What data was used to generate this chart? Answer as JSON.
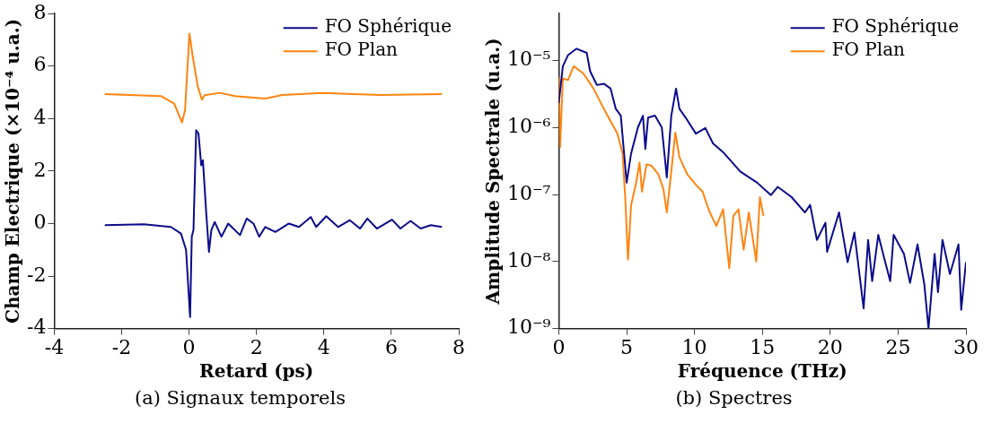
{
  "chart_data": [
    {
      "type": "line",
      "xlabel": "Retard (ps)",
      "ylabel": "Champ Electrique (×10⁻⁴ u.a.)",
      "annotations": [
        "(a) Signaux temporels"
      ],
      "xlim": [
        -4,
        8
      ],
      "xticks": [
        -4,
        -2,
        0,
        2,
        4,
        6,
        8
      ],
      "ylim": [
        -4,
        8
      ],
      "yticks": [
        -4,
        -2,
        0,
        2,
        4,
        6,
        8
      ],
      "grid": false,
      "legend": "top right",
      "marker": "none",
      "series": [
        {
          "name": "FO Sphérique",
          "color": "#0b0b8a",
          "x": [
            -2.5,
            -1.34,
            -0.54,
            -0.24,
            -0.09,
            0.03,
            0.08,
            0.13,
            0.21,
            0.28,
            0.36,
            0.41,
            0.51,
            0.59,
            0.66,
            0.76,
            0.96,
            1.16,
            1.51,
            1.71,
            1.91,
            2.08,
            2.26,
            2.56,
            2.96,
            3.26,
            3.61,
            3.77,
            4.07,
            4.42,
            4.77,
            5.07,
            5.29,
            5.57,
            6.02,
            6.27,
            6.57,
            6.87,
            7.17,
            7.5
          ],
          "values": [
            -0.06,
            -0.03,
            -0.13,
            -0.38,
            -1.0,
            -3.56,
            -0.5,
            -0.25,
            3.56,
            3.43,
            2.22,
            2.41,
            0.38,
            -1.08,
            -0.25,
            0.06,
            -0.5,
            0,
            -0.44,
            0.19,
            0,
            -0.5,
            -0.13,
            -0.32,
            0,
            -0.13,
            0.25,
            -0.13,
            0.28,
            -0.13,
            0.13,
            -0.19,
            0.19,
            -0.19,
            0.15,
            -0.19,
            0.1,
            -0.19,
            -0.06,
            -0.13
          ]
        },
        {
          "name": "FO Plan",
          "color": "#ff8410",
          "x": [
            -2.5,
            -0.84,
            -0.44,
            -0.21,
            -0.12,
            0.01,
            0.11,
            0.26,
            0.38,
            0.46,
            0.91,
            1.36,
            2.26,
            2.76,
            3.97,
            5.67,
            7.5
          ],
          "values": [
            4.93,
            4.86,
            4.57,
            3.85,
            4.32,
            7.24,
            6.35,
            5.21,
            4.72,
            4.89,
            4.98,
            4.86,
            4.76,
            4.9,
            4.98,
            4.9,
            4.93
          ]
        }
      ]
    },
    {
      "type": "line",
      "xlabel": "Fréquence (THz)",
      "ylabel": "Amplitude Spectrale (u.a.)",
      "annotations": [
        "(b) Spectres"
      ],
      "log": "y",
      "xlim": [
        0,
        30
      ],
      "xticks": [
        0,
        5,
        10,
        15,
        20,
        25,
        30
      ],
      "ylim": [
        1e-09,
        5e-05
      ],
      "yticks": [
        {
          "value": 1e-09,
          "label": "10⁻⁹"
        },
        {
          "value": 1e-08,
          "label": "10⁻⁸"
        },
        {
          "value": 1e-07,
          "label": "10⁻⁷"
        },
        {
          "value": 1e-06,
          "label": "10⁻⁶"
        },
        {
          "value": 1e-05,
          "label": "10⁻⁵"
        }
      ],
      "grid": false,
      "legend": "top right",
      "marker": "none",
      "series": [
        {
          "name": "FO Sphérique",
          "color": "#0b0b8a",
          "x": [
            0,
            0.3,
            0.68,
            1.31,
            2.06,
            2.31,
            2.81,
            3.32,
            3.82,
            4.2,
            4.57,
            5.0,
            5.33,
            5.83,
            6.2,
            6.38,
            6.58,
            7.09,
            7.59,
            7.96,
            8.29,
            8.64,
            8.89,
            9.35,
            10.1,
            10.8,
            11.36,
            12.1,
            13.37,
            14.62,
            15.63,
            16.13,
            17.14,
            18.14,
            18.52,
            19.02,
            19.65,
            19.77,
            20.65,
            21.28,
            21.78,
            22.46,
            22.79,
            23.09,
            23.54,
            24.04,
            24.42,
            24.67,
            25.43,
            25.88,
            26.43,
            26.93,
            27.24,
            27.69,
            27.94,
            28.27,
            28.82,
            29.45,
            29.65,
            30
          ],
          "values": [
            2.3e-06,
            8.2e-06,
            1.2e-05,
            1.5e-05,
            1.3e-05,
            6.9e-06,
            4.3e-06,
            4.5e-06,
            3.8e-06,
            1.9e-06,
            1.5e-06,
            1.5e-07,
            4.1e-07,
            1e-06,
            1.5e-06,
            4.8e-07,
            1.4e-06,
            1.5e-06,
            1e-06,
            1.8e-07,
            1.5e-06,
            3.8e-06,
            1.9e-06,
            1.4e-06,
            8.1e-07,
            9.8e-07,
            5.8e-07,
            4.3e-07,
            2.2e-07,
            1.5e-07,
            9.8e-08,
            1.3e-07,
            9.2e-08,
            5.4e-08,
            7e-08,
            2.1e-08,
            3.8e-08,
            1.4e-08,
            5.4e-08,
            9.8e-09,
            2.7e-08,
            2e-09,
            2.1e-08,
            5.1e-09,
            2.5e-08,
            1e-08,
            5.1e-09,
            2.5e-08,
            1.3e-08,
            4.8e-09,
            1.8e-08,
            4.6e-09,
            1e-09,
            1.3e-08,
            3.5e-09,
            2.1e-08,
            6.5e-09,
            1.8e-08,
            1.9e-09,
            9.8e-09
          ]
        },
        {
          "name": "FO Plan",
          "color": "#ff8410",
          "x": [
            0,
            0.1,
            0.3,
            0.68,
            1.1,
            1.81,
            2.56,
            3.32,
            4.32,
            4.7,
            4.9,
            5.1,
            5.33,
            5.7,
            5.95,
            6.13,
            6.46,
            6.83,
            7.34,
            7.71,
            7.96,
            8.29,
            8.59,
            8.89,
            9.47,
            10.1,
            10.6,
            11.06,
            11.61,
            12.11,
            12.56,
            12.86,
            13.24,
            13.62,
            14.0,
            14.55,
            14.82,
            15.08
          ],
          "values": [
            5.7e-06,
            5.1e-07,
            5.4e-06,
            5.1e-06,
            8.2e-06,
            6.4e-06,
            3.8e-06,
            1.9e-06,
            8.1e-07,
            4.1e-07,
            8.7e-08,
            1.07e-08,
            6.9e-08,
            1.5e-07,
            3e-07,
            1.1e-07,
            2.8e-07,
            2.7e-07,
            2e-07,
            1.2e-07,
            5.4e-08,
            2.2e-07,
            8.4e-07,
            3.6e-07,
            2e-07,
            1.4e-07,
            1.1e-07,
            5.8e-08,
            3.4e-08,
            6e-08,
            7.9e-09,
            4.8e-08,
            6e-08,
            1.5e-08,
            5.4e-08,
            1e-08,
            9.1e-08,
            4.8e-08
          ]
        }
      ]
    }
  ]
}
